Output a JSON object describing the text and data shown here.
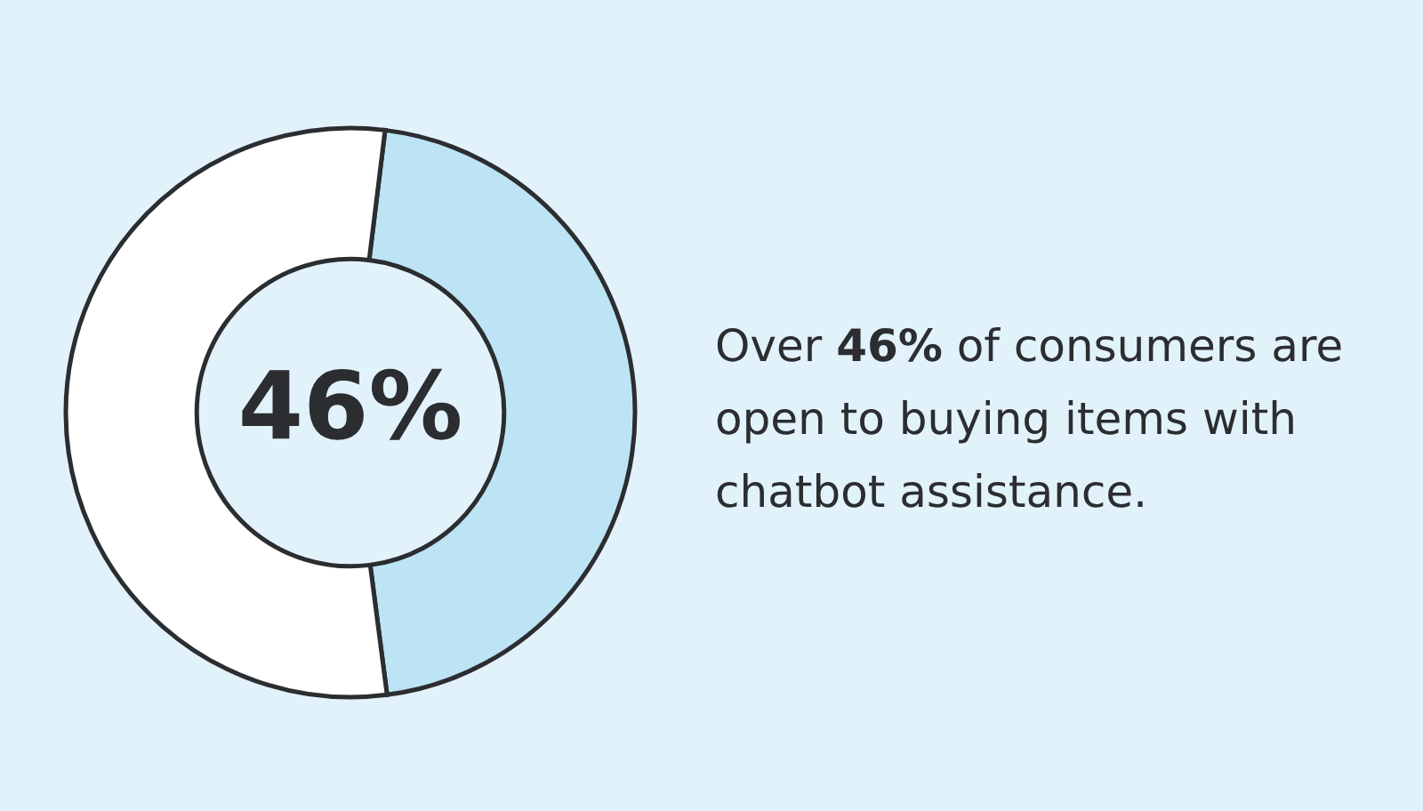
{
  "chart_data": {
    "type": "donut",
    "title": "Over 46% of consumers are open to buying items with chatbot assistance.",
    "categories": [
      null,
      null
    ],
    "values": [
      46,
      54
    ],
    "colors": [
      "#bde4f4",
      "#ffffff"
    ],
    "value_labels": [
      "46%",
      null
    ]
  }
}
